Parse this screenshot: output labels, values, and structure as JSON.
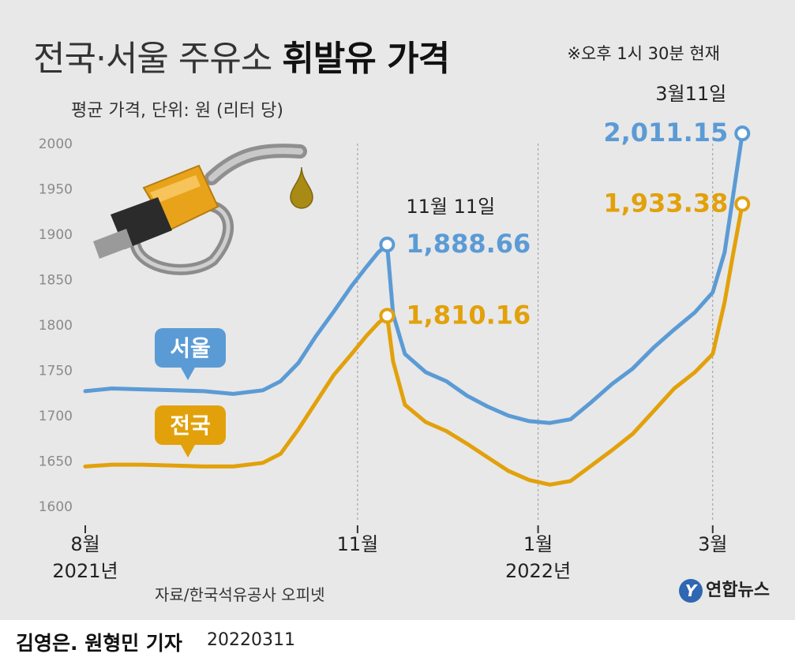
{
  "title": {
    "light": "전국·서울 주유소 ",
    "bold": "휘발유 가격"
  },
  "note": "※오후 1시 30분 현재",
  "subtitle": "평균 가격, 단위: 원 (리터 당)",
  "source": "자료/한국석유공사 오피넷",
  "byline": "김영은. 원형민 기자",
  "date": "20220311",
  "logo": {
    "mark": "Y",
    "text": "연합뉴스"
  },
  "colors": {
    "seoul": "#5b9bd5",
    "national": "#e2a10b",
    "background": "#e8e8e8"
  },
  "icons": [
    "fuel-nozzle-icon",
    "fuel-drop-icon"
  ],
  "chart_data": {
    "type": "line",
    "title": "전국·서울 주유소 휘발유 가격",
    "ylabel": "평균 가격, 단위: 원 (리터 당)",
    "ylim": [
      1600,
      2000
    ],
    "yticks": [
      1600,
      1650,
      1700,
      1750,
      1800,
      1850,
      1900,
      1950,
      2000
    ],
    "xlim": [
      "2021-08-01",
      "2022-03-12"
    ],
    "xticks": [
      {
        "date": "2021-08-01",
        "label": "8월",
        "sub": "2021년"
      },
      {
        "date": "2021-11-01",
        "label": "11월",
        "sub": ""
      },
      {
        "date": "2022-01-01",
        "label": "1월",
        "sub": "2022년"
      },
      {
        "date": "2022-03-01",
        "label": "3월",
        "sub": ""
      }
    ],
    "grid": "vertical-at-month-ticks",
    "series": [
      {
        "name": "서울",
        "color": "#5b9bd5",
        "points": [
          [
            "2021-08-01",
            1727
          ],
          [
            "2021-08-10",
            1730
          ],
          [
            "2021-08-20",
            1729
          ],
          [
            "2021-08-31",
            1728
          ],
          [
            "2021-09-10",
            1727
          ],
          [
            "2021-09-20",
            1724
          ],
          [
            "2021-09-30",
            1728
          ],
          [
            "2021-10-06",
            1738
          ],
          [
            "2021-10-12",
            1758
          ],
          [
            "2021-10-18",
            1788
          ],
          [
            "2021-10-24",
            1815
          ],
          [
            "2021-10-30",
            1843
          ],
          [
            "2021-11-04",
            1864
          ],
          [
            "2021-11-08",
            1880
          ],
          [
            "2021-11-11",
            1888.66
          ],
          [
            "2021-11-13",
            1812
          ],
          [
            "2021-11-17",
            1768
          ],
          [
            "2021-11-24",
            1748
          ],
          [
            "2021-12-01",
            1738
          ],
          [
            "2021-12-08",
            1722
          ],
          [
            "2021-12-15",
            1710
          ],
          [
            "2021-12-22",
            1700
          ],
          [
            "2021-12-29",
            1694
          ],
          [
            "2022-01-05",
            1692
          ],
          [
            "2022-01-12",
            1696
          ],
          [
            "2022-01-19",
            1715
          ],
          [
            "2022-01-26",
            1735
          ],
          [
            "2022-02-02",
            1752
          ],
          [
            "2022-02-09",
            1775
          ],
          [
            "2022-02-16",
            1795
          ],
          [
            "2022-02-23",
            1814
          ],
          [
            "2022-03-01",
            1836
          ],
          [
            "2022-03-05",
            1880
          ],
          [
            "2022-03-08",
            1945
          ],
          [
            "2022-03-11",
            2011.15
          ]
        ]
      },
      {
        "name": "전국",
        "color": "#e2a10b",
        "points": [
          [
            "2021-08-01",
            1644
          ],
          [
            "2021-08-10",
            1646
          ],
          [
            "2021-08-20",
            1646
          ],
          [
            "2021-08-31",
            1645
          ],
          [
            "2021-09-10",
            1644
          ],
          [
            "2021-09-20",
            1644
          ],
          [
            "2021-09-30",
            1648
          ],
          [
            "2021-10-06",
            1658
          ],
          [
            "2021-10-12",
            1685
          ],
          [
            "2021-10-18",
            1715
          ],
          [
            "2021-10-24",
            1745
          ],
          [
            "2021-10-30",
            1768
          ],
          [
            "2021-11-04",
            1788
          ],
          [
            "2021-11-08",
            1802
          ],
          [
            "2021-11-11",
            1810.16
          ],
          [
            "2021-11-13",
            1760
          ],
          [
            "2021-11-17",
            1712
          ],
          [
            "2021-11-24",
            1693
          ],
          [
            "2021-12-01",
            1683
          ],
          [
            "2021-12-08",
            1669
          ],
          [
            "2021-12-15",
            1654
          ],
          [
            "2021-12-22",
            1639
          ],
          [
            "2021-12-29",
            1629
          ],
          [
            "2022-01-05",
            1624
          ],
          [
            "2022-01-12",
            1628
          ],
          [
            "2022-01-19",
            1645
          ],
          [
            "2022-01-26",
            1662
          ],
          [
            "2022-02-02",
            1680
          ],
          [
            "2022-02-09",
            1705
          ],
          [
            "2022-02-16",
            1730
          ],
          [
            "2022-02-23",
            1748
          ],
          [
            "2022-03-01",
            1768
          ],
          [
            "2022-03-05",
            1825
          ],
          [
            "2022-03-08",
            1880
          ],
          [
            "2022-03-11",
            1933.38
          ]
        ]
      }
    ],
    "annotations": [
      {
        "series": "서울",
        "date": "2021-11-11",
        "label": "11월 11일",
        "value_text": "1,888.66"
      },
      {
        "series": "전국",
        "date": "2021-11-11",
        "label": "",
        "value_text": "1,810.16"
      },
      {
        "series": "서울",
        "date": "2022-03-11",
        "label": "3월11일",
        "value_text": "2,011.15"
      },
      {
        "series": "전국",
        "date": "2022-03-11",
        "label": "",
        "value_text": "1,933.38"
      }
    ],
    "legend": [
      {
        "label": "서울",
        "color": "#5b9bd5",
        "placement": "left-above-series"
      },
      {
        "label": "전국",
        "color": "#e2a10b",
        "placement": "left-above-series"
      }
    ]
  }
}
